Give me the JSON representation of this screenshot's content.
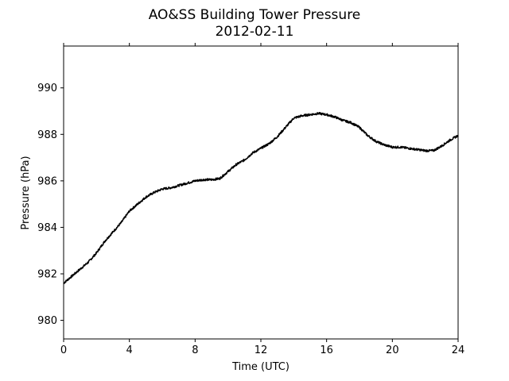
{
  "chart_data": {
    "type": "line",
    "title": "AO&SS Building Tower Pressure",
    "subtitle": "2012-02-11",
    "xlabel": "Time (UTC)",
    "ylabel": "Pressure (hPa)",
    "xlim": [
      0,
      24
    ],
    "ylim": [
      979.2,
      991.8
    ],
    "xticks": [
      0,
      4,
      8,
      12,
      16,
      20,
      24
    ],
    "yticks": [
      980,
      982,
      984,
      986,
      988,
      990
    ],
    "grid": false,
    "line_color": "#000000",
    "series": [
      {
        "x": [
          0,
          0.5,
          1,
          1.5,
          2,
          2.5,
          3,
          3.5,
          4,
          4.5,
          5,
          5.5,
          6,
          6.5,
          7,
          7.5,
          8,
          8.5,
          9,
          9.5,
          10,
          10.5,
          11,
          11.5,
          12,
          12.5,
          13,
          13.5,
          14,
          14.5,
          15,
          15.5,
          16,
          16.5,
          17,
          17.5,
          18,
          18.5,
          19,
          19.5,
          20,
          20.5,
          21,
          21.5,
          22,
          22.5,
          23,
          23.5,
          24
        ],
        "y": [
          981.6,
          981.9,
          982.2,
          982.5,
          982.9,
          983.4,
          983.8,
          984.2,
          984.7,
          985.0,
          985.3,
          985.5,
          985.65,
          985.7,
          985.8,
          985.9,
          986.0,
          986.05,
          986.05,
          986.1,
          986.4,
          986.7,
          986.9,
          987.2,
          987.4,
          987.6,
          987.9,
          988.3,
          988.7,
          988.8,
          988.85,
          988.9,
          988.85,
          988.75,
          988.6,
          988.5,
          988.3,
          987.95,
          987.7,
          987.55,
          987.45,
          987.45,
          987.4,
          987.35,
          987.3,
          987.3,
          987.5,
          987.75,
          987.95
        ]
      }
    ]
  }
}
